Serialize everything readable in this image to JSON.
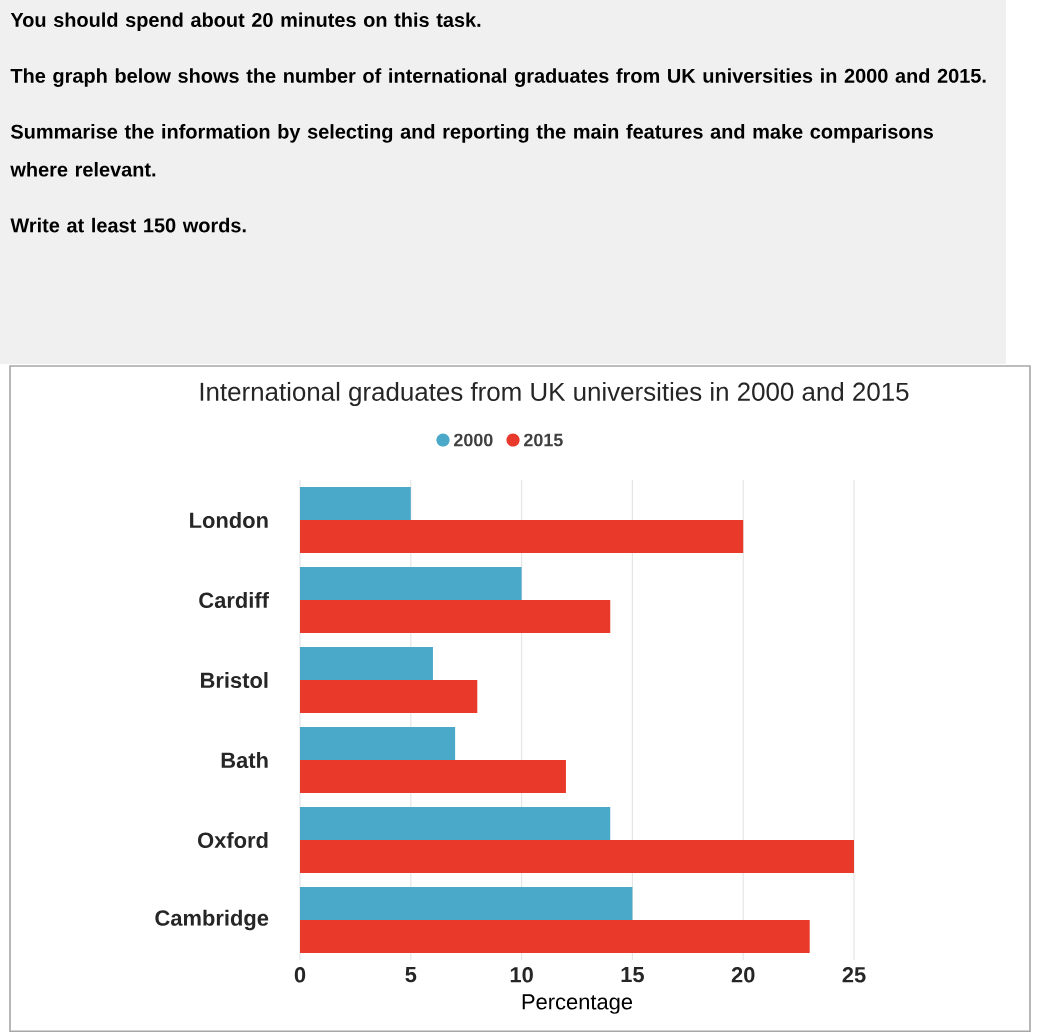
{
  "chart_data": {
    "type": "bar",
    "orientation": "horizontal",
    "title": "International graduates from UK universities in 2000 and 2015",
    "xlabel": "Percentage",
    "annotations": [
      "You should spend about 20 minutes on this task.",
      "The graph below shows the number of international graduates from UK universities in 2000 and 2015.",
      "Summarise the information by selecting and reporting the main features and make comparisons where relevant.",
      "Write at least 150 words."
    ],
    "categories": [
      "London",
      "Cardiff",
      "Bristol",
      "Bath",
      "Oxford",
      "Cambridge"
    ],
    "series": [
      {
        "name": "2000",
        "color": "#4aa8c8",
        "values": [
          5,
          10,
          6,
          7,
          14,
          15
        ]
      },
      {
        "name": "2015",
        "color": "#e8392a",
        "values": [
          20,
          14,
          8,
          12,
          25,
          23
        ]
      }
    ],
    "xlim": [
      0,
      25
    ],
    "xticks": [
      0,
      5,
      10,
      15,
      20,
      25
    ],
    "grid": "x",
    "legend": "top"
  }
}
